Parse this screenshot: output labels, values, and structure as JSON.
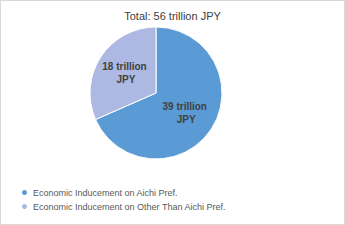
{
  "chart_data": {
    "type": "pie",
    "title": "Total: 56 trillion JPY",
    "categories": [
      "Economic Inducement on Aichi Pref.",
      "Economic Inducement on Other Than Aichi Pref."
    ],
    "values": [
      39,
      18
    ],
    "value_labels": [
      "39 trillion JPY",
      "18 trillion JPY"
    ],
    "colors": [
      "#5b9bd5",
      "#adb9e3"
    ],
    "data_labels": true,
    "legend": "bottom"
  }
}
